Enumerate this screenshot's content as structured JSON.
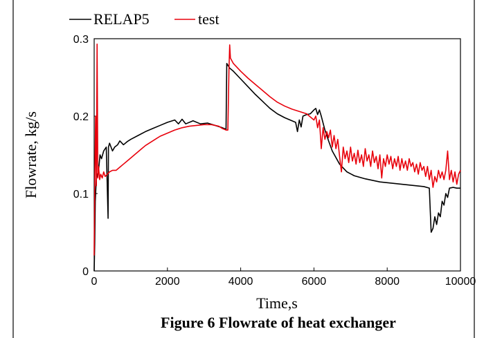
{
  "chart_data": {
    "type": "line",
    "title": "",
    "caption": "Figure 6  Flowrate of heat exchanger",
    "xlabel": "Time,s",
    "ylabel": "Flowrate,  kg/s",
    "xlim": [
      0,
      10000
    ],
    "ylim": [
      0,
      0.3
    ],
    "x_ticks": [
      "0",
      "2000",
      "4000",
      "6000",
      "8000",
      "10000"
    ],
    "y_ticks": [
      "0",
      "0.1",
      "0.2",
      "0.3"
    ],
    "grid": false,
    "legend_position": "top-left",
    "series": [
      {
        "name": "RELAP5",
        "color": "#000000",
        "points": [
          [
            0,
            0.0
          ],
          [
            15,
            0.035
          ],
          [
            30,
            0.09
          ],
          [
            60,
            0.12
          ],
          [
            120,
            0.13
          ],
          [
            160,
            0.15
          ],
          [
            200,
            0.145
          ],
          [
            260,
            0.155
          ],
          [
            330,
            0.16
          ],
          [
            380,
            0.068
          ],
          [
            390,
            0.16
          ],
          [
            420,
            0.165
          ],
          [
            500,
            0.155
          ],
          [
            560,
            0.16
          ],
          [
            640,
            0.163
          ],
          [
            700,
            0.168
          ],
          [
            800,
            0.163
          ],
          [
            900,
            0.167
          ],
          [
            1000,
            0.17
          ],
          [
            1200,
            0.175
          ],
          [
            1400,
            0.18
          ],
          [
            1600,
            0.184
          ],
          [
            1800,
            0.188
          ],
          [
            2000,
            0.192
          ],
          [
            2200,
            0.195
          ],
          [
            2300,
            0.19
          ],
          [
            2400,
            0.196
          ],
          [
            2500,
            0.19
          ],
          [
            2700,
            0.194
          ],
          [
            2900,
            0.19
          ],
          [
            3100,
            0.191
          ],
          [
            3300,
            0.188
          ],
          [
            3500,
            0.185
          ],
          [
            3600,
            0.183
          ],
          [
            3620,
            0.268
          ],
          [
            3700,
            0.262
          ],
          [
            3800,
            0.258
          ],
          [
            4000,
            0.248
          ],
          [
            4200,
            0.238
          ],
          [
            4400,
            0.228
          ],
          [
            4600,
            0.219
          ],
          [
            4800,
            0.21
          ],
          [
            5000,
            0.203
          ],
          [
            5200,
            0.198
          ],
          [
            5400,
            0.194
          ],
          [
            5500,
            0.192
          ],
          [
            5550,
            0.18
          ],
          [
            5600,
            0.195
          ],
          [
            5650,
            0.186
          ],
          [
            5700,
            0.2
          ],
          [
            5800,
            0.202
          ],
          [
            5900,
            0.203
          ],
          [
            6000,
            0.208
          ],
          [
            6050,
            0.21
          ],
          [
            6100,
            0.202
          ],
          [
            6150,
            0.208
          ],
          [
            6200,
            0.2
          ],
          [
            6300,
            0.182
          ],
          [
            6400,
            0.168
          ],
          [
            6500,
            0.155
          ],
          [
            6700,
            0.138
          ],
          [
            6900,
            0.128
          ],
          [
            7100,
            0.123
          ],
          [
            7400,
            0.119
          ],
          [
            7800,
            0.115
          ],
          [
            8200,
            0.113
          ],
          [
            8600,
            0.111
          ],
          [
            9000,
            0.109
          ],
          [
            9150,
            0.107
          ],
          [
            9200,
            0.05
          ],
          [
            9250,
            0.055
          ],
          [
            9300,
            0.07
          ],
          [
            9350,
            0.06
          ],
          [
            9400,
            0.075
          ],
          [
            9450,
            0.07
          ],
          [
            9500,
            0.09
          ],
          [
            9550,
            0.085
          ],
          [
            9600,
            0.1
          ],
          [
            9650,
            0.095
          ],
          [
            9700,
            0.107
          ],
          [
            9800,
            0.108
          ],
          [
            9900,
            0.107
          ],
          [
            10000,
            0.107
          ]
        ]
      },
      {
        "name": "test",
        "color": "#e8000b",
        "points": [
          [
            0,
            0.02
          ],
          [
            20,
            0.13
          ],
          [
            40,
            0.2
          ],
          [
            60,
            0.11
          ],
          [
            80,
            0.293
          ],
          [
            100,
            0.12
          ],
          [
            120,
            0.135
          ],
          [
            150,
            0.118
          ],
          [
            180,
            0.125
          ],
          [
            220,
            0.12
          ],
          [
            260,
            0.128
          ],
          [
            300,
            0.122
          ],
          [
            360,
            0.125
          ],
          [
            420,
            0.128
          ],
          [
            500,
            0.13
          ],
          [
            600,
            0.13
          ],
          [
            700,
            0.134
          ],
          [
            800,
            0.138
          ],
          [
            900,
            0.142
          ],
          [
            1000,
            0.146
          ],
          [
            1100,
            0.15
          ],
          [
            1200,
            0.154
          ],
          [
            1300,
            0.158
          ],
          [
            1400,
            0.162
          ],
          [
            1500,
            0.165
          ],
          [
            1600,
            0.168
          ],
          [
            1700,
            0.171
          ],
          [
            1800,
            0.174
          ],
          [
            1900,
            0.176
          ],
          [
            2000,
            0.178
          ],
          [
            2200,
            0.182
          ],
          [
            2400,
            0.185
          ],
          [
            2600,
            0.187
          ],
          [
            2800,
            0.188
          ],
          [
            3000,
            0.189
          ],
          [
            3200,
            0.189
          ],
          [
            3400,
            0.187
          ],
          [
            3500,
            0.184
          ],
          [
            3600,
            0.182
          ],
          [
            3650,
            0.182
          ],
          [
            3680,
            0.26
          ],
          [
            3700,
            0.292
          ],
          [
            3720,
            0.275
          ],
          [
            3800,
            0.268
          ],
          [
            4000,
            0.258
          ],
          [
            4200,
            0.249
          ],
          [
            4400,
            0.241
          ],
          [
            4600,
            0.233
          ],
          [
            4800,
            0.225
          ],
          [
            5000,
            0.218
          ],
          [
            5200,
            0.213
          ],
          [
            5400,
            0.209
          ],
          [
            5600,
            0.206
          ],
          [
            5800,
            0.203
          ],
          [
            5900,
            0.199
          ],
          [
            6000,
            0.195
          ],
          [
            6050,
            0.2
          ],
          [
            6100,
            0.185
          ],
          [
            6150,
            0.195
          ],
          [
            6200,
            0.158
          ],
          [
            6250,
            0.185
          ],
          [
            6300,
            0.17
          ],
          [
            6350,
            0.18
          ],
          [
            6400,
            0.172
          ],
          [
            6450,
            0.182
          ],
          [
            6500,
            0.16
          ],
          [
            6550,
            0.175
          ],
          [
            6600,
            0.158
          ],
          [
            6650,
            0.17
          ],
          [
            6700,
            0.148
          ],
          [
            6750,
            0.128
          ],
          [
            6800,
            0.16
          ],
          [
            6850,
            0.145
          ],
          [
            6900,
            0.155
          ],
          [
            6950,
            0.14
          ],
          [
            7000,
            0.16
          ],
          [
            7050,
            0.142
          ],
          [
            7100,
            0.152
          ],
          [
            7150,
            0.138
          ],
          [
            7200,
            0.156
          ],
          [
            7250,
            0.14
          ],
          [
            7300,
            0.15
          ],
          [
            7350,
            0.135
          ],
          [
            7400,
            0.158
          ],
          [
            7450,
            0.142
          ],
          [
            7500,
            0.15
          ],
          [
            7550,
            0.135
          ],
          [
            7600,
            0.155
          ],
          [
            7650,
            0.14
          ],
          [
            7700,
            0.148
          ],
          [
            7750,
            0.132
          ],
          [
            7800,
            0.15
          ],
          [
            7850,
            0.12
          ],
          [
            7900,
            0.145
          ],
          [
            7950,
            0.135
          ],
          [
            8000,
            0.15
          ],
          [
            8050,
            0.138
          ],
          [
            8100,
            0.148
          ],
          [
            8150,
            0.132
          ],
          [
            8200,
            0.145
          ],
          [
            8250,
            0.135
          ],
          [
            8300,
            0.148
          ],
          [
            8350,
            0.13
          ],
          [
            8400,
            0.145
          ],
          [
            8450,
            0.133
          ],
          [
            8500,
            0.142
          ],
          [
            8550,
            0.13
          ],
          [
            8600,
            0.145
          ],
          [
            8650,
            0.135
          ],
          [
            8700,
            0.14
          ],
          [
            8750,
            0.128
          ],
          [
            8800,
            0.138
          ],
          [
            8850,
            0.125
          ],
          [
            8900,
            0.14
          ],
          [
            8950,
            0.13
          ],
          [
            9000,
            0.135
          ],
          [
            9050,
            0.122
          ],
          [
            9100,
            0.135
          ],
          [
            9150,
            0.118
          ],
          [
            9200,
            0.13
          ],
          [
            9250,
            0.108
          ],
          [
            9300,
            0.122
          ],
          [
            9350,
            0.115
          ],
          [
            9400,
            0.13
          ],
          [
            9450,
            0.12
          ],
          [
            9500,
            0.128
          ],
          [
            9550,
            0.118
          ],
          [
            9600,
            0.13
          ],
          [
            9650,
            0.155
          ],
          [
            9700,
            0.118
          ],
          [
            9750,
            0.13
          ],
          [
            9800,
            0.115
          ],
          [
            9850,
            0.128
          ],
          [
            9900,
            0.112
          ],
          [
            9950,
            0.125
          ],
          [
            10000,
            0.13
          ]
        ]
      }
    ]
  }
}
